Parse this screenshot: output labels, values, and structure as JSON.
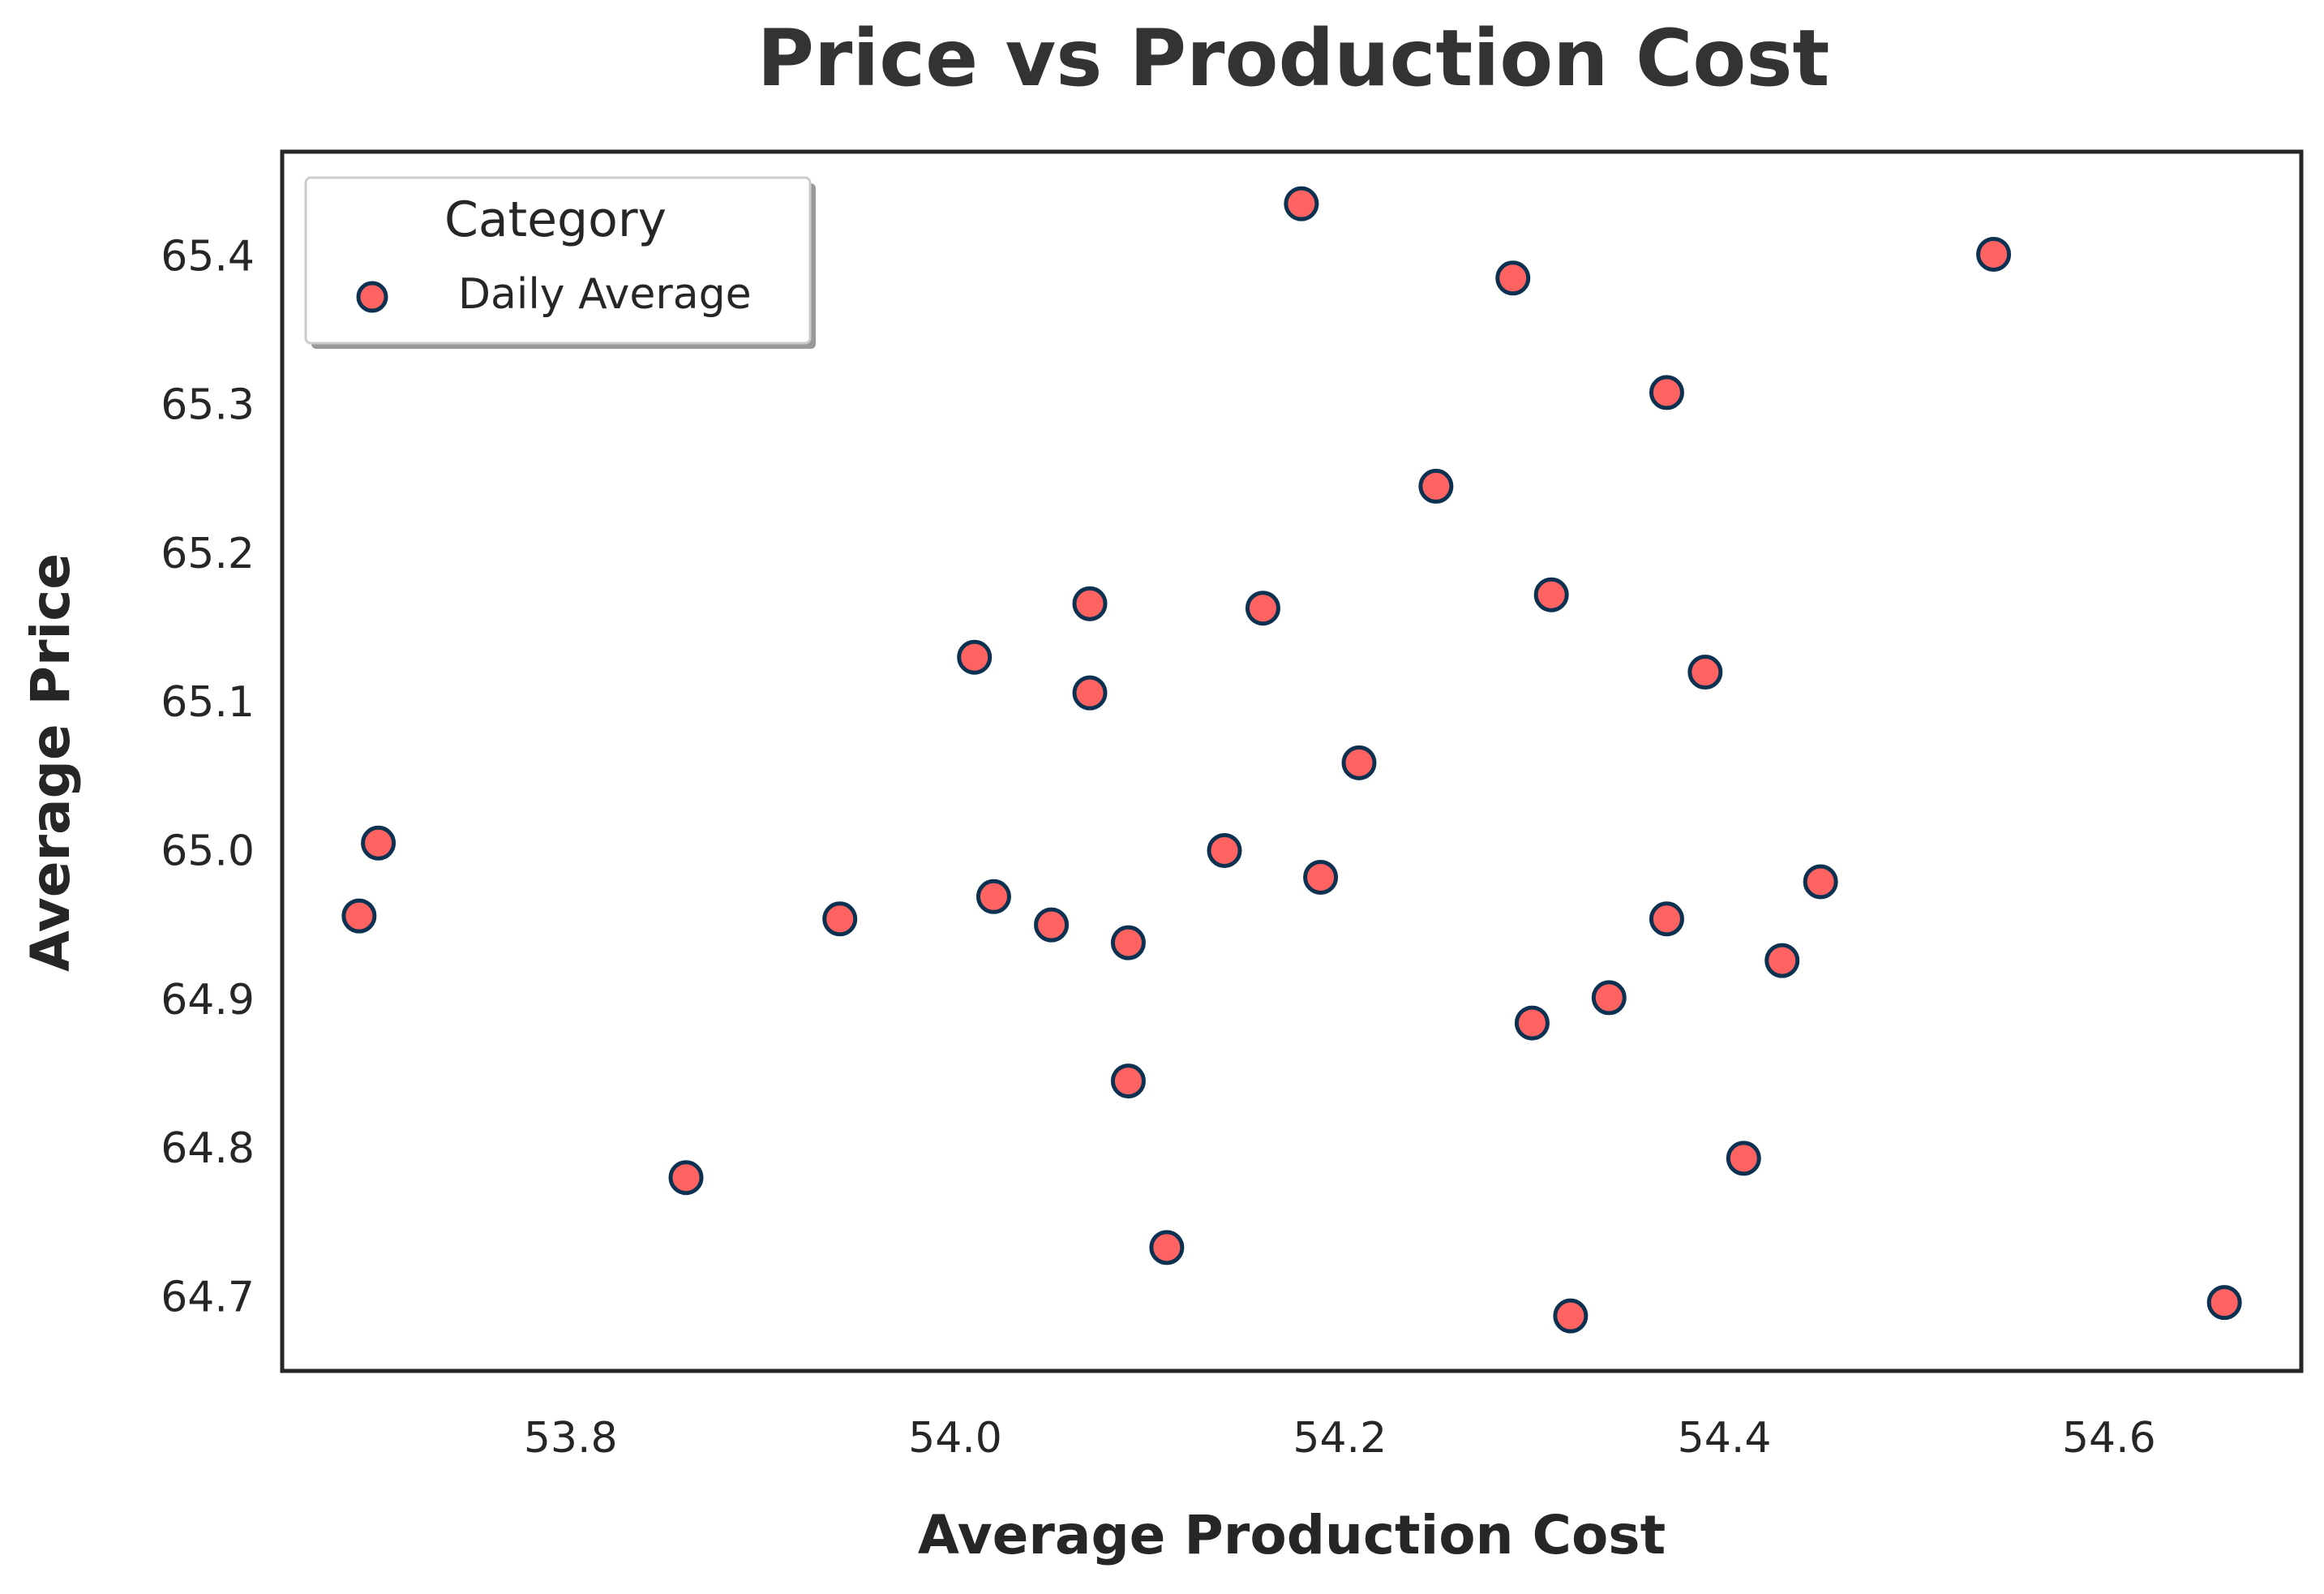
{
  "chart_data": {
    "type": "scatter",
    "title": "Price vs Production Cost",
    "xlabel": "Average Production Cost",
    "ylabel": "Average Price",
    "xlim": [
      53.65,
      54.7
    ],
    "ylim": [
      64.65,
      65.47
    ],
    "xticks": [
      "53.8",
      "54.0",
      "54.2",
      "54.4",
      "54.6"
    ],
    "yticks": [
      "64.7",
      "64.8",
      "64.9",
      "65.0",
      "65.1",
      "65.2",
      "65.3",
      "65.4"
    ],
    "grid": false,
    "legend": {
      "title": "Category",
      "placement": "top-left"
    },
    "marker_color": "#ff6361",
    "marker_edge_color": "#0d3251",
    "series": [
      {
        "name": "Daily Average",
        "points": [
          {
            "x": 53.69,
            "y": 64.956
          },
          {
            "x": 53.7,
            "y": 65.005
          },
          {
            "x": 53.86,
            "y": 64.78
          },
          {
            "x": 53.94,
            "y": 64.954
          },
          {
            "x": 54.01,
            "y": 65.13
          },
          {
            "x": 54.02,
            "y": 64.969
          },
          {
            "x": 54.05,
            "y": 64.95
          },
          {
            "x": 54.07,
            "y": 65.166
          },
          {
            "x": 54.07,
            "y": 65.106
          },
          {
            "x": 54.09,
            "y": 64.845
          },
          {
            "x": 54.09,
            "y": 64.938
          },
          {
            "x": 54.11,
            "y": 64.733
          },
          {
            "x": 54.14,
            "y": 65.0
          },
          {
            "x": 54.16,
            "y": 65.163
          },
          {
            "x": 54.18,
            "y": 65.435
          },
          {
            "x": 54.19,
            "y": 64.982
          },
          {
            "x": 54.21,
            "y": 65.059
          },
          {
            "x": 54.25,
            "y": 65.245
          },
          {
            "x": 54.29,
            "y": 65.385
          },
          {
            "x": 54.3,
            "y": 64.884
          },
          {
            "x": 54.31,
            "y": 65.172
          },
          {
            "x": 54.32,
            "y": 64.687
          },
          {
            "x": 54.34,
            "y": 64.901
          },
          {
            "x": 54.37,
            "y": 65.308
          },
          {
            "x": 54.37,
            "y": 64.954
          },
          {
            "x": 54.39,
            "y": 65.12
          },
          {
            "x": 54.41,
            "y": 64.793
          },
          {
            "x": 54.43,
            "y": 64.926
          },
          {
            "x": 54.45,
            "y": 64.979
          },
          {
            "x": 54.54,
            "y": 65.401
          },
          {
            "x": 54.66,
            "y": 64.696
          }
        ]
      }
    ]
  }
}
